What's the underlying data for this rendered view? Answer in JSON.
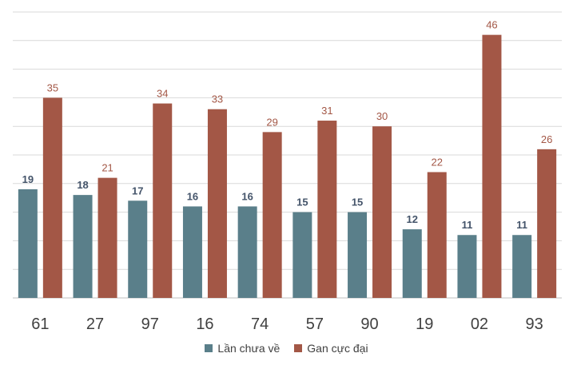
{
  "chart_data": {
    "type": "bar",
    "categories": [
      "61",
      "27",
      "97",
      "16",
      "74",
      "57",
      "90",
      "19",
      "02",
      "93"
    ],
    "series": [
      {
        "name": "Lần chưa về",
        "values": [
          19,
          18,
          17,
          16,
          16,
          15,
          15,
          12,
          11,
          11
        ],
        "color": "#5a7f8a"
      },
      {
        "name": "Gan cực đại",
        "values": [
          35,
          21,
          34,
          33,
          29,
          31,
          30,
          22,
          46,
          26
        ],
        "color": "#a35746"
      }
    ],
    "ylim": [
      0,
      50
    ],
    "grid": true,
    "legend_position": "bottom"
  }
}
